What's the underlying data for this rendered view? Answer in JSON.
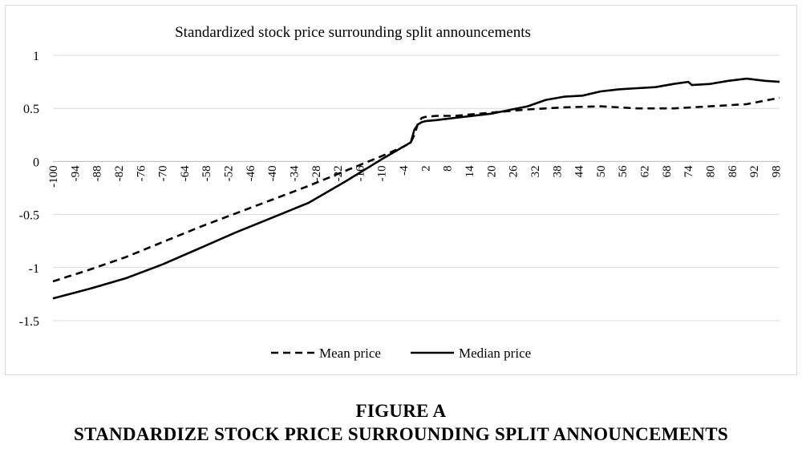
{
  "chart_data": {
    "type": "line",
    "title": "Standardized stock price surrounding split announcements",
    "xlabel": "",
    "ylabel": "",
    "xlim": [
      -100,
      99
    ],
    "ylim": [
      -1.5,
      1
    ],
    "yticks": [
      1,
      0.5,
      0,
      -0.5,
      -1,
      -1.5
    ],
    "ytick_labels": [
      "1",
      "0.5",
      "0",
      "-0.5",
      "-1",
      "-1.5"
    ],
    "xticks": [
      -100,
      -94,
      -88,
      -82,
      -76,
      -70,
      -64,
      -58,
      -52,
      -46,
      -40,
      -34,
      -28,
      -22,
      -16,
      -10,
      -4,
      2,
      8,
      14,
      20,
      26,
      32,
      38,
      44,
      50,
      56,
      62,
      68,
      74,
      80,
      86,
      92,
      98
    ],
    "xtick_labels": [
      "-100",
      "-94",
      "-88",
      "-82",
      "-76",
      "-70",
      "-64",
      "-58",
      "-52",
      "-46",
      "-40",
      "-34",
      "-28",
      "-22",
      "-16",
      "-10",
      "-4",
      "2",
      "8",
      "14",
      "20",
      "26",
      "32",
      "38",
      "44",
      "50",
      "56",
      "62",
      "68",
      "74",
      "80",
      "86",
      "92",
      "98"
    ],
    "grid": "horizontal",
    "legend_position": "bottom",
    "series": [
      {
        "name": "Mean price",
        "style": "dashed",
        "color": "#000000",
        "x": [
          -100,
          -90,
          -80,
          -70,
          -60,
          -50,
          -40,
          -30,
          -20,
          -10,
          -4,
          -2,
          -1,
          0,
          1,
          2,
          5,
          10,
          20,
          30,
          40,
          50,
          55,
          60,
          70,
          80,
          90,
          99
        ],
        "y": [
          -1.13,
          -1.02,
          -0.9,
          -0.76,
          -0.62,
          -0.49,
          -0.36,
          -0.23,
          -0.09,
          0.05,
          0.14,
          0.18,
          0.25,
          0.36,
          0.41,
          0.42,
          0.43,
          0.43,
          0.46,
          0.49,
          0.51,
          0.52,
          0.51,
          0.5,
          0.5,
          0.52,
          0.54,
          0.6
        ]
      },
      {
        "name": "Median price",
        "style": "solid",
        "color": "#000000",
        "x": [
          -100,
          -90,
          -80,
          -70,
          -60,
          -50,
          -40,
          -30,
          -20,
          -10,
          -4,
          -2,
          -1,
          0,
          1,
          2,
          5,
          10,
          20,
          30,
          35,
          40,
          45,
          50,
          55,
          60,
          65,
          70,
          74,
          75,
          80,
          85,
          90,
          95,
          99
        ],
        "y": [
          -1.29,
          -1.2,
          -1.1,
          -0.97,
          -0.82,
          -0.67,
          -0.53,
          -0.39,
          -0.19,
          0.02,
          0.14,
          0.18,
          0.3,
          0.35,
          0.37,
          0.38,
          0.39,
          0.41,
          0.45,
          0.52,
          0.58,
          0.61,
          0.62,
          0.66,
          0.68,
          0.69,
          0.7,
          0.73,
          0.75,
          0.72,
          0.73,
          0.76,
          0.78,
          0.76,
          0.75
        ]
      }
    ]
  },
  "caption": {
    "figure_label": "FIGURE A",
    "figure_title": "STANDARDIZE STOCK PRICE SURROUNDING SPLIT ANNOUNCEMENTS"
  }
}
